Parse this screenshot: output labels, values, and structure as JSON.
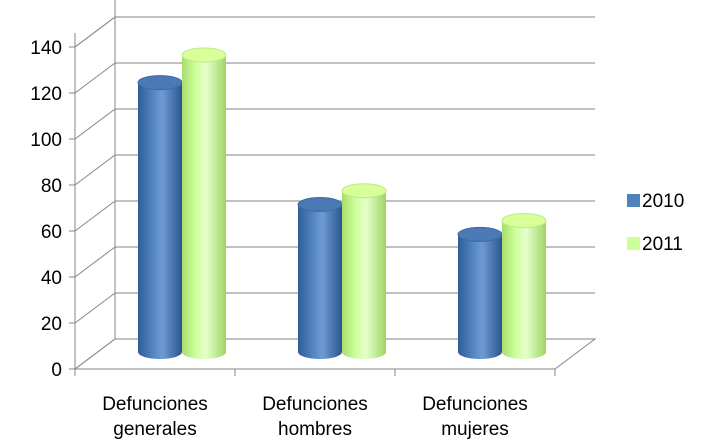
{
  "chart_data": {
    "type": "bar",
    "style": "3d-cylinder",
    "categories": [
      [
        "Defunciones",
        "generales"
      ],
      [
        "Defunciones",
        "hombres"
      ],
      [
        "Defunciones",
        "mujeres"
      ]
    ],
    "series": [
      {
        "name": "2010",
        "values": [
          118,
          65,
          52
        ],
        "color": "#4f81bd"
      },
      {
        "name": "2011",
        "values": [
          130,
          71,
          58
        ],
        "color": "#ccff99"
      }
    ],
    "y_ticks": [
      "0",
      "20",
      "40",
      "60",
      "80",
      "100",
      "120",
      "140"
    ],
    "ylim": [
      0,
      150
    ],
    "title": "",
    "xlabel": "",
    "ylabel": "",
    "grid": true,
    "legend_position": "right"
  }
}
